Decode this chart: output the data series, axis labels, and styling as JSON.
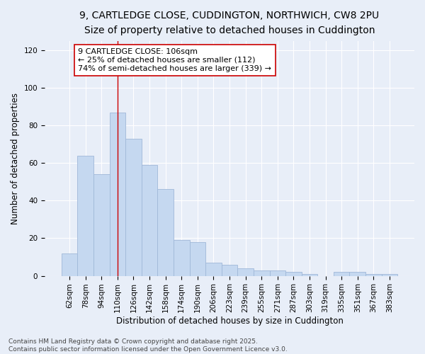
{
  "title_line1": "9, CARTLEDGE CLOSE, CUDDINGTON, NORTHWICH, CW8 2PU",
  "title_line2": "Size of property relative to detached houses in Cuddington",
  "xlabel": "Distribution of detached houses by size in Cuddington",
  "ylabel": "Number of detached properties",
  "categories": [
    "62sqm",
    "78sqm",
    "94sqm",
    "110sqm",
    "126sqm",
    "142sqm",
    "158sqm",
    "174sqm",
    "190sqm",
    "206sqm",
    "223sqm",
    "239sqm",
    "255sqm",
    "271sqm",
    "287sqm",
    "303sqm",
    "319sqm",
    "335sqm",
    "351sqm",
    "367sqm",
    "383sqm"
  ],
  "values": [
    12,
    64,
    54,
    87,
    73,
    59,
    46,
    19,
    18,
    7,
    6,
    4,
    3,
    3,
    2,
    1,
    0,
    2,
    2,
    1,
    1
  ],
  "bar_color": "#c5d8f0",
  "bar_edge_color": "#a0b8d8",
  "vline_x": 3.0,
  "vline_color": "#cc0000",
  "annotation_text": "9 CARTLEDGE CLOSE: 106sqm\n← 25% of detached houses are smaller (112)\n74% of semi-detached houses are larger (339) →",
  "annotation_box_color": "#ffffff",
  "annotation_edge_color": "#cc0000",
  "ylim": [
    0,
    125
  ],
  "yticks": [
    0,
    20,
    40,
    60,
    80,
    100,
    120
  ],
  "background_color": "#e8eef8",
  "grid_color": "#ffffff",
  "footer_line1": "Contains HM Land Registry data © Crown copyright and database right 2025.",
  "footer_line2": "Contains public sector information licensed under the Open Government Licence v3.0.",
  "title_fontsize": 10,
  "subtitle_fontsize": 9,
  "axis_label_fontsize": 8.5,
  "tick_fontsize": 7.5,
  "annotation_fontsize": 8,
  "footer_fontsize": 6.5
}
